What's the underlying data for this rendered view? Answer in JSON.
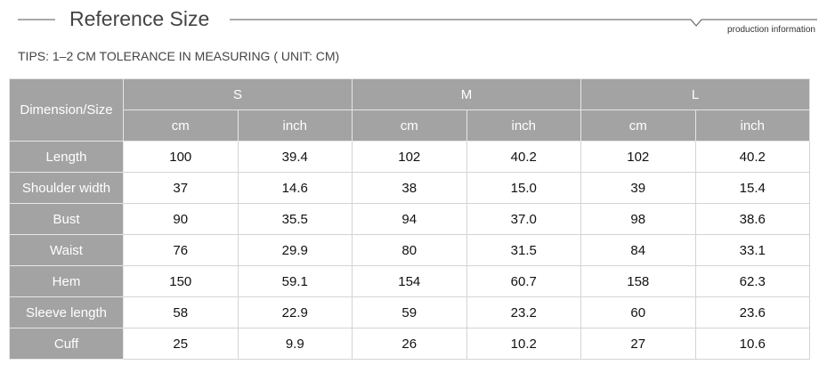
{
  "header": {
    "title": "Reference Size",
    "subtitle": "production information"
  },
  "tips": "TIPS: 1–2 CM TOLERANCE IN MEASURING ( UNIT: CM)",
  "table": {
    "corner": "Dimension/Size",
    "sizes": [
      "S",
      "M",
      "L"
    ],
    "units": [
      "cm",
      "inch",
      "cm",
      "inch",
      "cm",
      "inch"
    ],
    "rows": [
      {
        "label": "Length",
        "cells": [
          "100",
          "39.4",
          "102",
          "40.2",
          "102",
          "40.2"
        ]
      },
      {
        "label": "Shoulder width",
        "cells": [
          "37",
          "14.6",
          "38",
          "15.0",
          "39",
          "15.4"
        ]
      },
      {
        "label": "Bust",
        "cells": [
          "90",
          "35.5",
          "94",
          "37.0",
          "98",
          "38.6"
        ]
      },
      {
        "label": "Waist",
        "cells": [
          "76",
          "29.9",
          "80",
          "31.5",
          "84",
          "33.1"
        ]
      },
      {
        "label": "Hem",
        "cells": [
          "150",
          "59.1",
          "154",
          "60.7",
          "158",
          "62.3"
        ]
      },
      {
        "label": "Sleeve length",
        "cells": [
          "58",
          "22.9",
          "59",
          "23.2",
          "60",
          "23.6"
        ]
      },
      {
        "label": "Cuff",
        "cells": [
          "25",
          "9.9",
          "26",
          "10.2",
          "27",
          "10.6"
        ]
      }
    ]
  }
}
